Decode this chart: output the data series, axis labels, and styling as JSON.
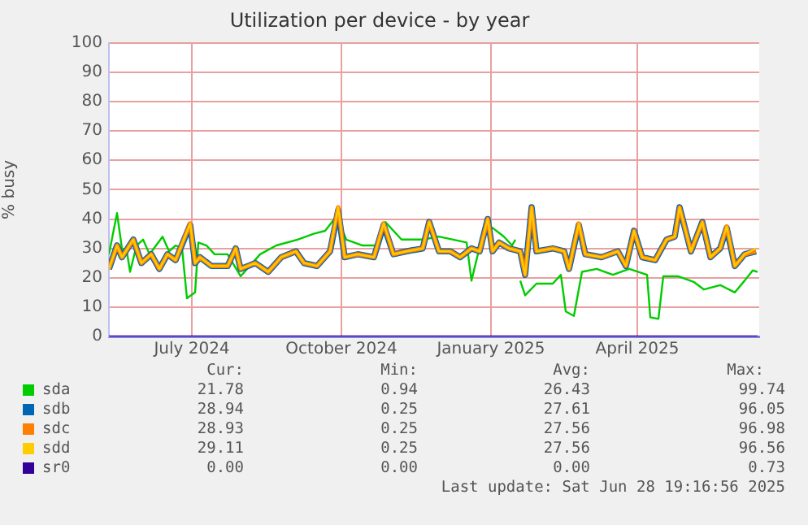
{
  "chart_data": {
    "type": "line",
    "title": "Utilization per device - by year",
    "ylabel": "% busy",
    "xlim": [
      "2024-05-11",
      "2025-06-15"
    ],
    "xticks": [
      {
        "value": "2024-07-01",
        "label": "July 2024"
      },
      {
        "value": "2024-10-01",
        "label": "October 2024"
      },
      {
        "value": "2025-01-01",
        "label": "January 2025"
      },
      {
        "value": "2025-04-01",
        "label": "April 2025"
      }
    ],
    "ylim": [
      0,
      100
    ],
    "yticks": [
      0,
      10,
      20,
      30,
      40,
      50,
      60,
      70,
      80,
      90,
      100
    ],
    "grid": true,
    "legend": "bottom",
    "marker": "none",
    "line_style": "solid",
    "x": [
      "2024-05-11",
      "2024-05-16",
      "2024-05-19",
      "2024-05-26",
      "2024-05-31",
      "2024-06-06",
      "2024-06-11",
      "2024-06-16",
      "2024-06-21",
      "2024-06-30",
      "2024-07-03",
      "2024-07-06",
      "2024-07-13",
      "2024-07-23",
      "2024-07-28",
      "2024-07-31",
      "2024-08-09",
      "2024-08-17",
      "2024-08-25",
      "2024-09-03",
      "2024-09-08",
      "2024-09-16",
      "2024-09-24",
      "2024-09-29",
      "2024-10-03",
      "2024-10-11",
      "2024-10-21",
      "2024-10-27",
      "2024-11-02",
      "2024-11-10",
      "2024-11-20",
      "2024-11-24",
      "2024-11-30",
      "2024-12-07",
      "2024-12-13",
      "2024-12-20",
      "2024-12-25",
      "2024-12-30",
      "2025-01-02",
      "2025-01-06",
      "2025-01-12",
      "2025-01-19",
      "2025-01-22",
      "2025-01-26",
      "2025-01-29",
      "2025-02-08",
      "2025-02-15",
      "2025-02-18",
      "2025-02-24",
      "2025-02-28",
      "2025-03-10",
      "2025-03-20",
      "2025-03-25",
      "2025-03-30",
      "2025-04-04",
      "2025-04-12",
      "2025-04-19",
      "2025-04-24",
      "2025-04-27",
      "2025-05-04",
      "2025-05-11",
      "2025-05-16",
      "2025-05-22",
      "2025-05-26",
      "2025-05-31",
      "2025-06-06",
      "2025-06-13"
    ],
    "series": [
      {
        "name": "sda",
        "color": "#00cc00",
        "x": [
          "2024-05-11",
          "2024-05-16",
          "2024-05-19",
          "2024-05-22",
          "2024-05-24",
          "2024-05-28",
          "2024-06-01",
          "2024-06-05",
          "2024-06-09",
          "2024-06-13",
          "2024-06-17",
          "2024-06-21",
          "2024-06-25",
          "2024-06-28",
          "2024-07-03",
          "2024-07-05",
          "2024-07-10",
          "2024-07-15",
          "2024-07-23",
          "2024-07-31",
          "2024-08-12",
          "2024-08-22",
          "2024-09-04",
          "2024-09-14",
          "2024-09-21",
          "2024-09-28",
          "2024-10-04",
          "2024-10-14",
          "2024-10-24",
          "2024-10-28",
          "2024-11-07",
          "2024-11-20",
          "2024-11-30",
          "2024-12-17",
          "2024-12-20",
          "2024-12-27",
          "2025-01-02",
          "2025-01-09",
          "2025-01-14",
          "2025-01-16",
          "2025-01-17",
          "2025-01-19",
          "2025-01-22",
          "2025-01-29",
          "2025-02-08",
          "2025-02-13",
          "2025-02-16",
          "2025-02-21",
          "2025-02-26",
          "2025-03-07",
          "2025-03-17",
          "2025-03-27",
          "2025-04-07",
          "2025-04-09",
          "2025-04-14",
          "2025-04-17",
          "2025-04-26",
          "2025-05-06",
          "2025-05-12",
          "2025-05-22",
          "2025-05-31",
          "2025-06-06",
          "2025-06-11",
          "2025-06-14"
        ],
        "values": [
          28,
          42,
          30,
          29,
          22,
          31,
          33,
          28,
          31,
          34,
          29,
          31,
          30,
          13,
          15,
          32,
          31,
          28,
          28,
          20.5,
          28,
          31,
          33,
          35,
          36,
          41,
          33,
          31,
          31,
          39,
          33,
          33,
          34,
          32,
          19,
          35,
          37,
          34,
          31,
          33,
          null,
          19,
          14,
          18,
          18,
          21,
          8.5,
          7,
          22,
          23,
          21,
          23,
          21,
          6.5,
          6,
          20.5,
          20.5,
          18.5,
          16,
          17.5,
          15,
          19,
          22.5,
          22
        ]
      },
      {
        "name": "sdb",
        "color": "#0066b3",
        "values": [
          23,
          31,
          27,
          33,
          25,
          28,
          23,
          28,
          26,
          38,
          25,
          27,
          24,
          24,
          30,
          23,
          25,
          22,
          27,
          29,
          25,
          24,
          29,
          43,
          27,
          28,
          27,
          38,
          28,
          29,
          30,
          39,
          29,
          29,
          27,
          30,
          29,
          40,
          29,
          32,
          30,
          29,
          21,
          44,
          29,
          30,
          29,
          23,
          38,
          28,
          27,
          29,
          24,
          36,
          27,
          26,
          33,
          34,
          44,
          29,
          39,
          27,
          30,
          37,
          24,
          28,
          29
        ]
      },
      {
        "name": "sdc",
        "color": "#ff8000",
        "values": [
          23,
          31,
          27,
          33,
          25,
          28,
          23,
          28,
          26,
          38.5,
          25,
          27,
          24,
          24,
          30,
          23,
          25,
          22,
          27,
          29,
          25,
          24,
          29,
          44,
          27,
          28,
          27,
          38.5,
          28,
          29,
          30,
          39,
          29,
          29,
          27,
          30,
          29,
          40,
          29,
          32,
          30,
          29,
          21,
          44,
          29,
          30,
          29,
          23,
          38.5,
          28,
          27,
          29,
          24,
          36,
          27,
          26,
          33,
          34,
          44,
          29,
          39,
          27,
          30,
          37.5,
          24,
          28,
          29
        ]
      },
      {
        "name": "sdd",
        "color": "#ffcc00",
        "values": [
          23,
          31,
          27,
          33,
          25,
          28,
          23,
          28,
          26,
          38.5,
          25,
          27,
          24,
          24,
          30,
          23,
          25,
          22,
          27,
          29,
          25,
          24,
          29,
          44,
          27,
          28,
          27,
          38.5,
          28,
          29,
          30,
          39,
          29,
          29,
          27,
          30,
          29,
          40,
          29,
          32,
          30,
          29,
          21,
          44,
          29,
          30,
          29,
          23,
          38.5,
          28,
          27,
          29,
          24,
          36,
          27,
          26,
          33,
          34,
          44,
          29,
          39,
          27,
          30,
          37.5,
          24,
          28,
          30
        ]
      },
      {
        "name": "sr0",
        "color": "#330099",
        "x": [
          "2024-05-11",
          "2025-06-14"
        ],
        "values": [
          0,
          0
        ]
      }
    ],
    "annotations": [
      "Cur:",
      "Min:",
      "Avg:",
      "Max:",
      "21.78",
      "0.94",
      "26.43",
      "99.74",
      "28.94",
      "0.25",
      "27.61",
      "96.05",
      "28.93",
      "0.25",
      "27.56",
      "96.98",
      "29.11",
      "0.25",
      "27.56",
      "96.56",
      "0.00",
      "0.00",
      "0.00",
      "0.73",
      "Last update: Sat Jun 28 19:16:56 2025"
    ]
  }
}
